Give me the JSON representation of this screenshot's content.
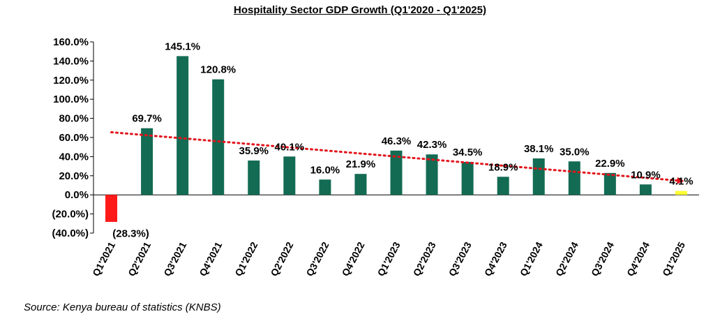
{
  "chart_data": {
    "type": "bar",
    "title": "Hospitality Sector GDP Growth (Q1'2020 - Q1'2025)",
    "categories": [
      "Q1'2021",
      "Q2'2021",
      "Q3'2021",
      "Q4'2021",
      "Q1'2022",
      "Q2'2022",
      "Q3'2022",
      "Q4'2022",
      "Q1'2023",
      "Q2'2023",
      "Q3'2023",
      "Q4'2023",
      "Q1'2024",
      "Q2'2024",
      "Q3'2024",
      "Q4'2024",
      "Q1'2025"
    ],
    "values": [
      -28.3,
      69.7,
      145.1,
      120.8,
      35.9,
      40.1,
      16.0,
      21.9,
      46.3,
      42.3,
      34.5,
      18.9,
      38.1,
      35.0,
      22.9,
      10.9,
      4.1
    ],
    "data_labels": [
      "(28.3%)",
      "69.7%",
      "145.1%",
      "120.8%",
      "35.9%",
      "40.1%",
      "16.0%",
      "21.9%",
      "46.3%",
      "42.3%",
      "34.5%",
      "18.9%",
      "38.1%",
      "35.0%",
      "22.9%",
      "10.9%",
      "4.1%"
    ],
    "ylim": [
      -40,
      160
    ],
    "yticks": [
      160,
      140,
      120,
      100,
      80,
      60,
      40,
      20,
      0,
      -20,
      -40
    ],
    "ytick_labels": [
      "160.0%",
      "140.0%",
      "120.0%",
      "100.0%",
      "80.0%",
      "60.0%",
      "40.0%",
      "20.0%",
      "0.0%",
      "(20.0%)",
      "(40.0%)"
    ],
    "xlabel": "",
    "ylabel": "",
    "grid": false,
    "legend": "none",
    "trendline": {
      "style": "dotted",
      "color": "#e3141b",
      "start": 65.5,
      "end": 14.5
    },
    "colors": {
      "default": "#136b53",
      "first": "#ff1a1a",
      "last": "#ffff33"
    }
  },
  "source_note": "Source: Kenya bureau of statistics (KNBS)"
}
